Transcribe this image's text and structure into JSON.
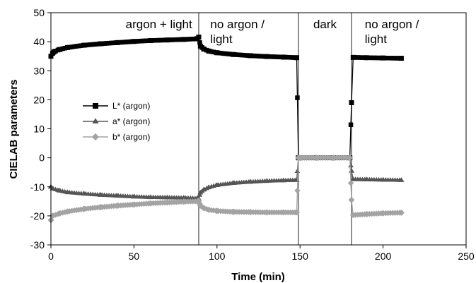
{
  "chart_data": {
    "type": "line",
    "xlabel": "Time (min)",
    "ylabel": "CIELAB parameters",
    "xlim": [
      0,
      250
    ],
    "ylim": [
      -30,
      50
    ],
    "x_ticks": [
      0,
      50,
      100,
      150,
      200,
      250
    ],
    "y_ticks": [
      50,
      40,
      30,
      20,
      10,
      0,
      -10,
      -20,
      -30
    ],
    "grid": false,
    "legend_position": "left",
    "phase_boundaries": [
      89,
      149,
      181
    ],
    "phase_labels": [
      {
        "text_lines": [
          "argon + light"
        ],
        "x": 45
      },
      {
        "text_lines": [
          "no argon /",
          "light"
        ],
        "x": 96
      },
      {
        "text_lines": [
          "dark"
        ],
        "x": 158
      },
      {
        "text_lines": [
          "no argon /",
          "light"
        ],
        "x": 189
      }
    ],
    "series": [
      {
        "name": "L* (argon)",
        "color": "#000000",
        "marker": "square",
        "x": [
          0,
          1,
          2,
          5,
          10,
          20,
          30,
          40,
          50,
          60,
          70,
          80,
          88,
          89,
          90,
          92,
          95,
          100,
          110,
          120,
          130,
          140,
          148,
          149,
          150,
          160,
          170,
          180,
          181,
          182,
          190,
          200,
          211
        ],
        "y": [
          35,
          36,
          36.6,
          37.3,
          38,
          38.8,
          39.3,
          39.7,
          40.1,
          40.4,
          40.6,
          40.8,
          41,
          41.6,
          38.5,
          37.5,
          36.8,
          36.2,
          35.6,
          35.2,
          34.9,
          34.7,
          34.5,
          0,
          0,
          0,
          0,
          0,
          19,
          34.6,
          34.5,
          34.4,
          34.3
        ]
      },
      {
        "name": "a* (argon)",
        "color": "#555555",
        "marker": "triangle",
        "x": [
          0,
          1,
          5,
          10,
          20,
          30,
          40,
          50,
          60,
          70,
          80,
          88,
          89,
          90,
          92,
          95,
          100,
          110,
          120,
          130,
          140,
          148,
          149,
          150,
          160,
          170,
          180,
          181,
          182,
          190,
          200,
          211
        ],
        "y": [
          -10,
          -10.6,
          -11.3,
          -11.9,
          -12.4,
          -12.8,
          -13.1,
          -13.4,
          -13.6,
          -13.7,
          -13.8,
          -14,
          -14.1,
          -12,
          -11,
          -10.2,
          -9.4,
          -8.7,
          -8.3,
          -8,
          -7.8,
          -7.7,
          0,
          0,
          0,
          0,
          0,
          -4.5,
          -7.4,
          -7.5,
          -7.6,
          -7.7
        ]
      },
      {
        "name": "b* (argon)",
        "color": "#a3a3a3",
        "marker": "diamond",
        "x": [
          0,
          1,
          5,
          10,
          20,
          30,
          40,
          50,
          60,
          70,
          80,
          88,
          89,
          90,
          92,
          95,
          100,
          110,
          120,
          130,
          140,
          148,
          149,
          150,
          160,
          170,
          180,
          181,
          182,
          190,
          200,
          211
        ],
        "y": [
          -21.5,
          -20,
          -19.2,
          -18.5,
          -17.6,
          -17,
          -16.5,
          -16.1,
          -15.7,
          -15.4,
          -15.1,
          -15,
          -14.8,
          -16.5,
          -17.3,
          -17.9,
          -18.3,
          -18.6,
          -18.7,
          -18.8,
          -18.8,
          -18.8,
          0,
          0,
          0,
          0,
          0,
          -14.5,
          -19.7,
          -19.4,
          -19.1,
          -18.9
        ]
      }
    ]
  }
}
